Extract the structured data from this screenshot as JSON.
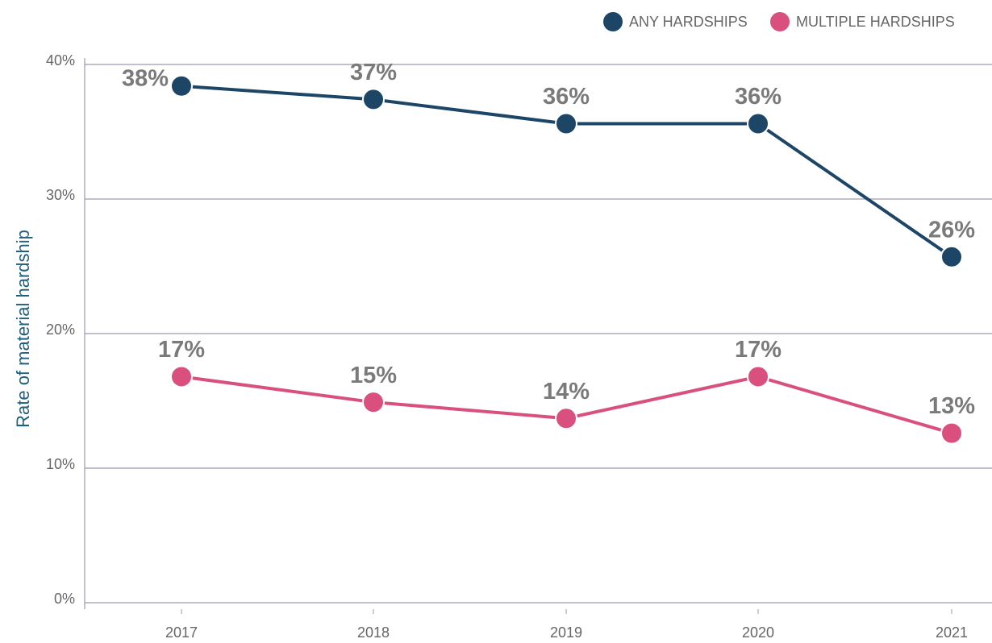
{
  "chart_data": {
    "type": "line",
    "y_label": "Rate of material hardship",
    "categories": [
      "2017",
      "2018",
      "2019",
      "2020",
      "2021"
    ],
    "series": [
      {
        "name": "ANY HARDSHIPS",
        "color": "#1c4566",
        "values": [
          38.4,
          37.4,
          35.6,
          35.6,
          25.7
        ],
        "value_labels": [
          "38%",
          "37%",
          "36%",
          "36%",
          "26%"
        ]
      },
      {
        "name": "MULTIPLE HARDSHIPS",
        "color": "#d94f7d",
        "values": [
          16.8,
          14.9,
          13.7,
          16.8,
          12.6
        ],
        "value_labels": [
          "17%",
          "15%",
          "14%",
          "17%",
          "13%"
        ]
      }
    ],
    "ylim": [
      0,
      40
    ],
    "yticks": [
      {
        "value": 0,
        "label": "0%"
      },
      {
        "value": 10,
        "label": "10%"
      },
      {
        "value": 20,
        "label": "20%"
      },
      {
        "value": 30,
        "label": "30%"
      },
      {
        "value": 40,
        "label": "40%"
      }
    ],
    "grid": true,
    "legend": "top-right"
  }
}
